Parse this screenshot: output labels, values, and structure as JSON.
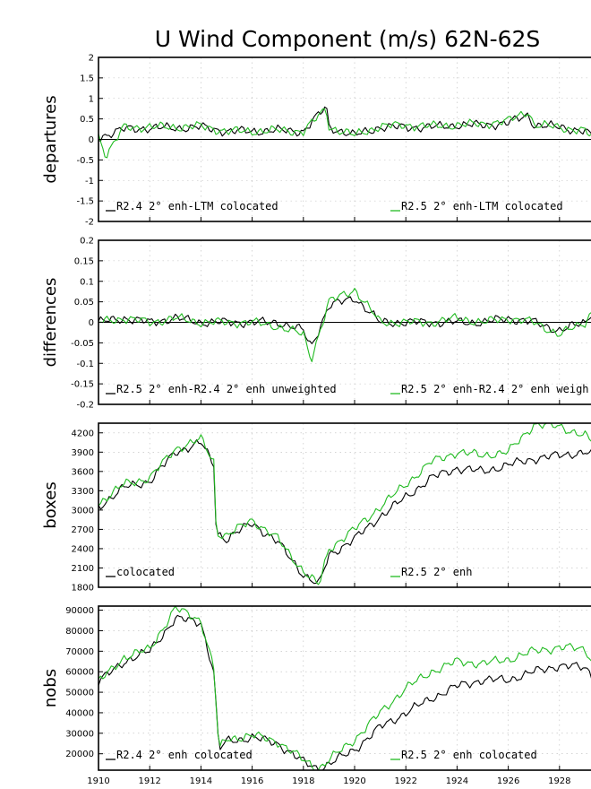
{
  "title": "U Wind Component (m/s) 62N-62S",
  "colors": {
    "series_a": "#000000",
    "series_b": "#22bb22"
  },
  "x_axis": {
    "range": [
      1910,
      1929.3
    ],
    "ticks": [
      "1910",
      "1912",
      "1914",
      "1916",
      "1918",
      "1920",
      "1922",
      "1924",
      "1926",
      "1928"
    ]
  },
  "chart_data": [
    {
      "type": "line",
      "ylabel": "departures",
      "ylim": [
        -2,
        2
      ],
      "yticks": [
        "-2",
        "-1.5",
        "-1",
        "-0.5",
        "0",
        "0.5",
        "1",
        "1.5",
        "2"
      ],
      "zero_line": true,
      "grid": true,
      "series": [
        {
          "name": "R2.4 2° enh-LTM colocated",
          "legend": "top-left",
          "x": [
            1910,
            1911,
            1912,
            1913,
            1914,
            1915,
            1916,
            1917,
            1918,
            1918.9,
            1919,
            1920,
            1921,
            1922,
            1923,
            1924,
            1925,
            1926,
            1926.8,
            1927,
            1928,
            1929,
            1929.3
          ],
          "y": [
            0.05,
            0.25,
            0.28,
            0.28,
            0.3,
            0.2,
            0.2,
            0.22,
            0.2,
            0.8,
            0.3,
            0.1,
            0.3,
            0.3,
            0.3,
            0.35,
            0.35,
            0.4,
            0.6,
            0.35,
            0.3,
            0.2,
            0.05
          ]
        },
        {
          "name": "R2.5 2° enh-LTM colocated",
          "legend": "top-right",
          "x": [
            1910,
            1910.3,
            1911,
            1912,
            1913,
            1914,
            1915,
            1916,
            1917,
            1918,
            1918.9,
            1919,
            1920,
            1921,
            1922,
            1923,
            1924,
            1925,
            1926,
            1926.8,
            1927,
            1928,
            1929,
            1929.3
          ],
          "y": [
            0.1,
            -0.4,
            0.3,
            0.3,
            0.3,
            0.32,
            0.2,
            0.2,
            0.22,
            0.2,
            0.75,
            0.3,
            0.1,
            0.32,
            0.35,
            0.32,
            0.35,
            0.38,
            0.45,
            0.7,
            0.35,
            0.3,
            0.2,
            0.05
          ]
        }
      ]
    },
    {
      "type": "line",
      "ylabel": "differences",
      "ylim": [
        -0.2,
        0.2
      ],
      "yticks": [
        "-0.2",
        "-0.15",
        "-0.1",
        "-0.05",
        "0",
        "0.05",
        "0.1",
        "0.15",
        "0.2"
      ],
      "zero_line": true,
      "grid": true,
      "series": [
        {
          "name": "R2.5 2° enh-R2.4 2° enh unweighted",
          "legend": "top-left",
          "x": [
            1910,
            1911,
            1912,
            1913,
            1914,
            1915,
            1916,
            1917,
            1918,
            1918.3,
            1919,
            1920,
            1921,
            1922,
            1923,
            1924,
            1925,
            1926,
            1927,
            1928,
            1929,
            1929.3
          ],
          "y": [
            0.0,
            0.01,
            0.0,
            0.01,
            0.0,
            0.0,
            0.0,
            0.0,
            -0.02,
            -0.06,
            0.04,
            0.06,
            0.0,
            0.0,
            0.0,
            0.0,
            0.0,
            0.01,
            0.0,
            -0.02,
            0.0,
            0.03
          ]
        },
        {
          "name": "R2.5 2° enh-R2.4 2° enh weigh",
          "legend": "top-right",
          "x": [
            1910,
            1911,
            1912,
            1913,
            1914,
            1915,
            1916,
            1917,
            1918,
            1918.3,
            1919,
            1920,
            1921,
            1922,
            1923,
            1924,
            1925,
            1926,
            1927,
            1928,
            1929,
            1929.3
          ],
          "y": [
            0.0,
            0.01,
            0.0,
            0.01,
            0.0,
            0.0,
            0.0,
            -0.01,
            -0.03,
            -0.09,
            0.05,
            0.08,
            0.0,
            0.0,
            0.0,
            0.01,
            0.0,
            0.01,
            0.0,
            -0.03,
            0.0,
            0.03
          ]
        }
      ]
    },
    {
      "type": "line",
      "ylabel": "boxes",
      "ylim": [
        1800,
        4350
      ],
      "yticks": [
        "1800",
        "2100",
        "2400",
        "2700",
        "3000",
        "3300",
        "3600",
        "3900",
        "4200"
      ],
      "zero_line": false,
      "grid": true,
      "series": [
        {
          "name": "colocated",
          "legend": "top-left",
          "x": [
            1910,
            1911,
            1912,
            1913,
            1914,
            1914.5,
            1914.6,
            1915,
            1916,
            1917,
            1918,
            1918.6,
            1919,
            1920,
            1921,
            1922,
            1923,
            1924,
            1925,
            1926,
            1927,
            1928,
            1929,
            1929.3
          ],
          "y": [
            3050,
            3350,
            3450,
            3900,
            4050,
            3700,
            2650,
            2550,
            2800,
            2500,
            2000,
            1830,
            2300,
            2550,
            2900,
            3200,
            3500,
            3650,
            3600,
            3700,
            3800,
            3850,
            3900,
            3850
          ]
        },
        {
          "name": "R2.5 2° enh",
          "legend": "top-right",
          "x": [
            1910,
            1911,
            1912,
            1913,
            1914,
            1914.5,
            1914.6,
            1915,
            1916,
            1917,
            1918,
            1918.6,
            1919,
            1920,
            1921,
            1922,
            1923,
            1924,
            1925,
            1926,
            1927,
            1928,
            1929,
            1929.3
          ],
          "y": [
            3100,
            3400,
            3500,
            3950,
            4100,
            3750,
            2650,
            2600,
            2850,
            2550,
            2050,
            1830,
            2400,
            2700,
            3050,
            3400,
            3750,
            3900,
            3850,
            3900,
            4330,
            4300,
            4150,
            4050
          ]
        }
      ]
    },
    {
      "type": "line",
      "ylabel": "nobs",
      "ylim": [
        12000,
        92000
      ],
      "yticks": [
        "20000",
        "30000",
        "40000",
        "50000",
        "60000",
        "70000",
        "80000",
        "90000"
      ],
      "zero_line": false,
      "grid": true,
      "series": [
        {
          "name": "R2.4 2° enh colocated",
          "legend": "top-left",
          "x": [
            1910,
            1911,
            1912,
            1913,
            1914,
            1914.5,
            1914.7,
            1915,
            1916,
            1917,
            1918,
            1918.6,
            1919,
            1920,
            1921,
            1922,
            1923,
            1924,
            1925,
            1926,
            1927,
            1928,
            1929,
            1929.3
          ],
          "y": [
            55000,
            65000,
            70000,
            86000,
            84000,
            60000,
            22000,
            26000,
            28000,
            25000,
            16000,
            12500,
            15000,
            22000,
            33000,
            40000,
            47000,
            53000,
            56000,
            56000,
            60000,
            63000,
            62000,
            58000
          ]
        },
        {
          "name": "R2.5 2° enh colocated",
          "legend": "top-right",
          "x": [
            1910,
            1911,
            1912,
            1913,
            1914,
            1914.5,
            1914.7,
            1915,
            1916,
            1917,
            1918,
            1918.6,
            1919,
            1920,
            1921,
            1922,
            1923,
            1924,
            1925,
            1926,
            1927,
            1928,
            1929,
            1929.3
          ],
          "y": [
            55000,
            67000,
            71000,
            91000,
            85000,
            62000,
            22000,
            27000,
            29000,
            26000,
            17000,
            12500,
            17000,
            27000,
            40000,
            52000,
            60000,
            65000,
            64000,
            66000,
            70000,
            72000,
            71000,
            65000
          ]
        }
      ]
    }
  ]
}
